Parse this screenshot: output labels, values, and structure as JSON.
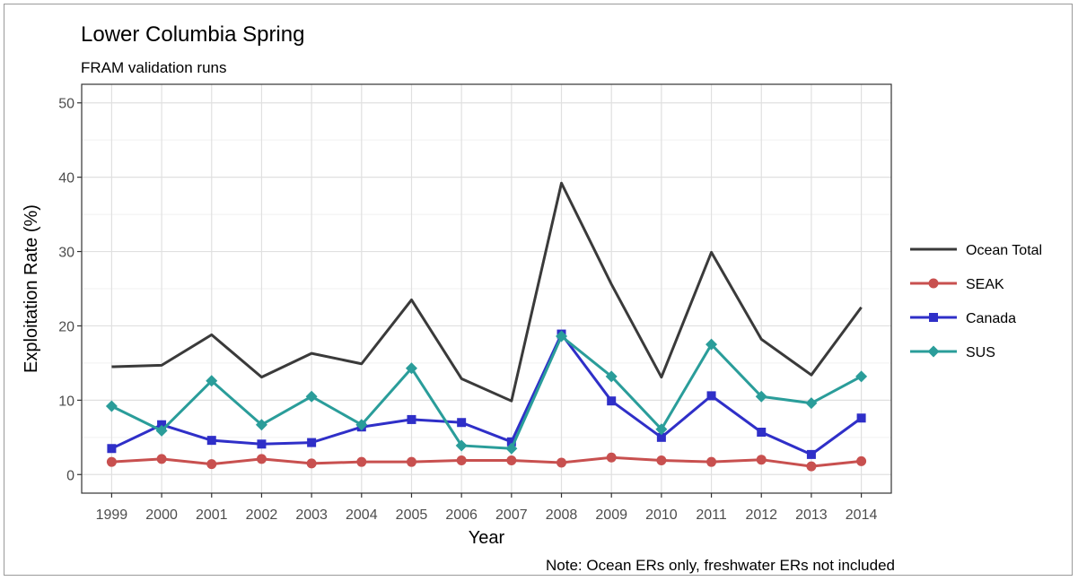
{
  "chart_data": {
    "type": "line",
    "title": "Lower Columbia Spring",
    "subtitle": "FRAM validation runs",
    "xlabel": "Year",
    "ylabel": "Exploitation Rate (%)",
    "caption": "Note: Ocean ERs only, freshwater ERs not included",
    "x": [
      "1999",
      "2000",
      "2001",
      "2002",
      "2003",
      "2004",
      "2005",
      "2006",
      "2007",
      "2008",
      "2009",
      "2010",
      "2011",
      "2012",
      "2013",
      "2014"
    ],
    "ylim": [
      -2.5,
      52.5
    ],
    "yticks": [
      "0",
      "10",
      "20",
      "30",
      "40",
      "50"
    ],
    "grid": true,
    "legend_position": "right",
    "series": [
      {
        "name": "Ocean Total",
        "color": "#3a3a3a",
        "marker": "none",
        "values": [
          14.5,
          14.7,
          18.8,
          13.1,
          16.3,
          14.9,
          23.5,
          12.9,
          9.9,
          39.2,
          25.6,
          13.1,
          29.9,
          18.2,
          13.4,
          22.5
        ]
      },
      {
        "name": "SEAK",
        "color": "#c8504f",
        "marker": "circle",
        "values": [
          1.7,
          2.1,
          1.4,
          2.1,
          1.5,
          1.7,
          1.7,
          1.9,
          1.9,
          1.6,
          2.3,
          1.9,
          1.7,
          2.0,
          1.1,
          1.8
        ]
      },
      {
        "name": "Canada",
        "color": "#2f2fc8",
        "marker": "square",
        "values": [
          3.5,
          6.7,
          4.6,
          4.1,
          4.3,
          6.4,
          7.4,
          7.0,
          4.4,
          18.9,
          9.9,
          5.0,
          10.6,
          5.7,
          2.7,
          7.6
        ]
      },
      {
        "name": "SUS",
        "color": "#2a9d9a",
        "marker": "diamond",
        "values": [
          9.2,
          5.9,
          12.6,
          6.7,
          10.5,
          6.7,
          14.3,
          3.9,
          3.5,
          18.6,
          13.2,
          6.1,
          17.5,
          10.5,
          9.6,
          13.2
        ]
      }
    ]
  }
}
